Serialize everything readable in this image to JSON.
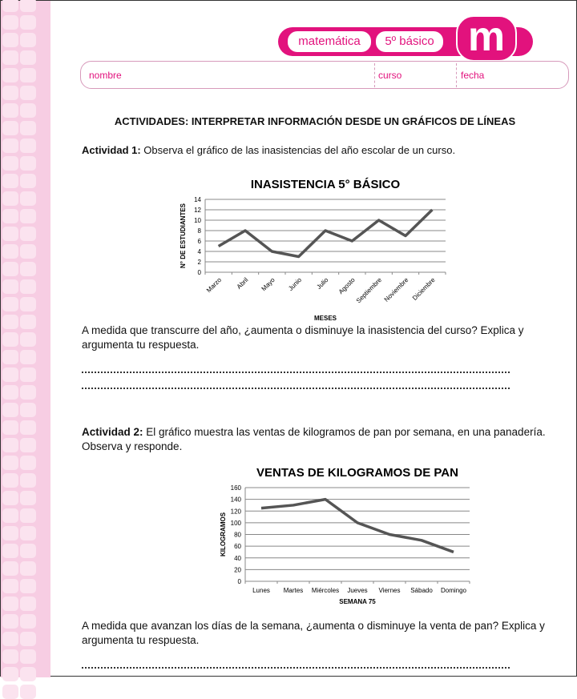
{
  "header": {
    "subject": "matemática",
    "grade": "5º básico",
    "logo": "m",
    "accent": "#e2127d"
  },
  "fields": {
    "name": "nombre",
    "course": "curso",
    "date": "fecha"
  },
  "title": "ACTIVIDADES: INTERPRETAR INFORMACIÓN DESDE UN GRÁFICOS DE LÍNEAS",
  "act1": {
    "label": "Actividad 1:",
    "text": " Observa el gráfico de las inasistencias del año escolar de un curso.",
    "question": "A medida que transcurre del año, ¿aumenta o disminuye la inasistencia del curso? Explica y argumenta tu respuesta."
  },
  "act2": {
    "label": "Actividad 2:",
    "text": " El gráfico muestra las ventas de kilogramos de pan por semana, en una panadería. Observa y responde.",
    "question": "A medida que avanzan los días de la semana, ¿aumenta o disminuye la venta de pan? Explica y argumenta tu respuesta."
  },
  "chart_data": [
    {
      "type": "line",
      "title": "INASISTENCIA 5° BÁSICO",
      "xlabel": "MESES",
      "ylabel": "N° DE ESTUDIANTES",
      "categories": [
        "Marzo",
        "Abril",
        "Mayo",
        "Junio",
        "Julio",
        "Agosto",
        "Septiembre",
        "Noviembre",
        "Diciembre"
      ],
      "values": [
        5,
        8,
        4,
        3,
        8,
        6,
        10,
        7,
        12
      ],
      "ylim": [
        0,
        14
      ],
      "yticks": [
        0,
        2,
        4,
        6,
        8,
        10,
        12,
        14
      ],
      "grid": true,
      "color": "#555555"
    },
    {
      "type": "line",
      "title": "VENTAS DE KILOGRAMOS DE PAN",
      "xlabel": "SEMANA 75",
      "ylabel": "KILOGRAMOS",
      "categories": [
        "Lunes",
        "Martes",
        "Miércoles",
        "Jueves",
        "Viernes",
        "Sábado",
        "Domingo"
      ],
      "values": [
        125,
        130,
        140,
        100,
        80,
        70,
        50
      ],
      "ylim": [
        0,
        160
      ],
      "yticks": [
        0,
        20,
        40,
        60,
        80,
        100,
        120,
        140,
        160
      ],
      "grid": true,
      "color": "#555555"
    }
  ]
}
